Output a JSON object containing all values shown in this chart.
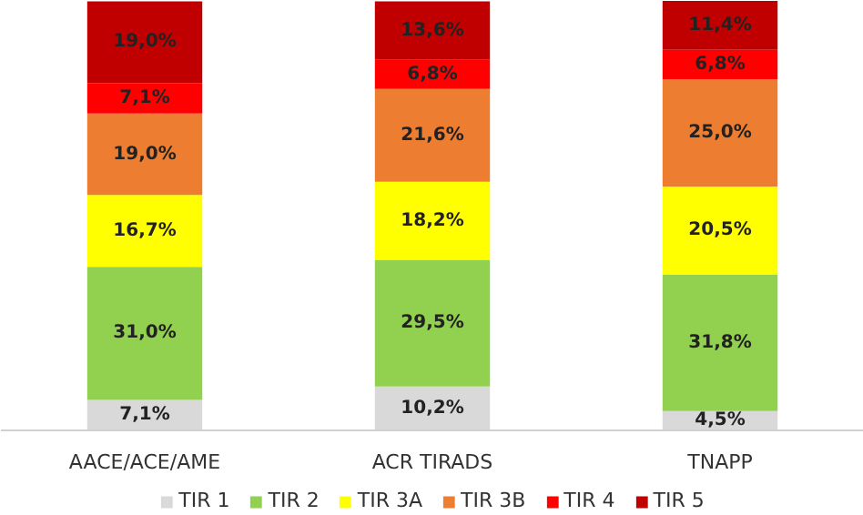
{
  "chart_data": {
    "type": "bar",
    "stacked": true,
    "categories": [
      "AACE/ACE/AME",
      "ACR TIRADS",
      "TNAPP"
    ],
    "ylim": [
      0,
      100
    ],
    "tick_labels": "x",
    "legend": "bottom",
    "series": [
      {
        "name": "TIR 1",
        "color": "#d9d9d9",
        "values": [
          7.1,
          10.2,
          4.5
        ],
        "value_labels": [
          "7,1%",
          "10,2%",
          "4,5%"
        ]
      },
      {
        "name": "TIR 2",
        "color": "#92d050",
        "values": [
          31.0,
          29.5,
          31.8
        ],
        "value_labels": [
          "31,0%",
          "29,5%",
          "31,8%"
        ]
      },
      {
        "name": "TIR 3A",
        "color": "#ffff00",
        "values": [
          16.7,
          18.2,
          20.5
        ],
        "value_labels": [
          "16,7%",
          "18,2%",
          "20,5%"
        ]
      },
      {
        "name": "TIR 3B",
        "color": "#ed7d31",
        "values": [
          19.0,
          21.6,
          25.0
        ],
        "value_labels": [
          "19,0%",
          "21,6%",
          "25,0%"
        ]
      },
      {
        "name": "TIR 4",
        "color": "#ff0000",
        "values": [
          7.1,
          6.8,
          6.8
        ],
        "value_labels": [
          "7,1%",
          "6,8%",
          "6,8%"
        ]
      },
      {
        "name": "TIR 5",
        "color": "#c00000",
        "values": [
          19.0,
          13.6,
          11.4
        ],
        "value_labels": [
          "19,0%",
          "13,6%",
          "11,4%"
        ]
      }
    ]
  }
}
